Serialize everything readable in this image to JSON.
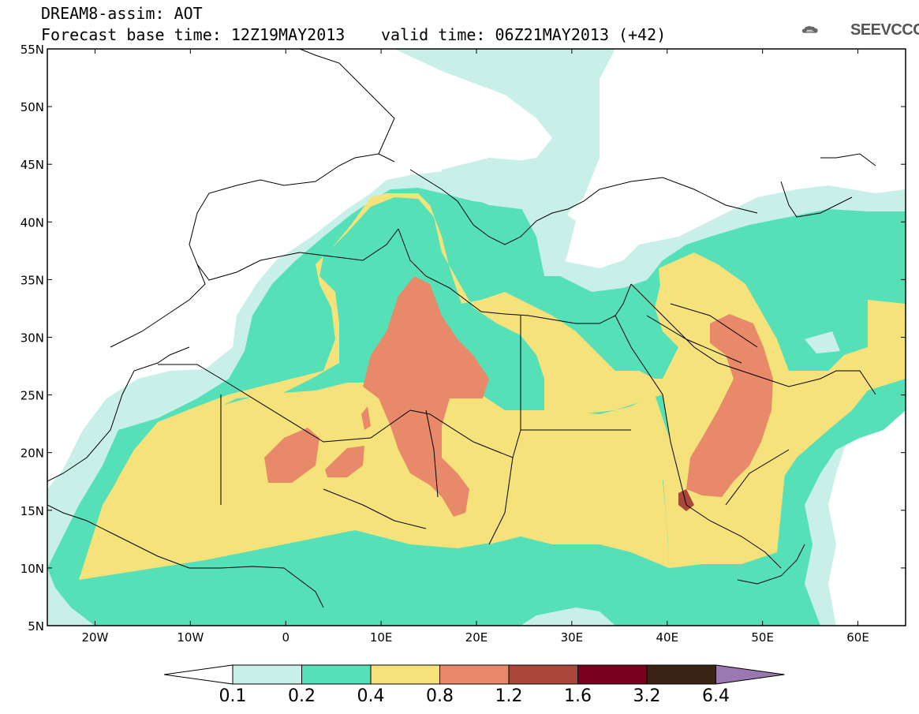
{
  "header": {
    "title": "DREAM8-assim: AOT",
    "base_time": "Forecast base time: 12Z19MAY2013",
    "valid_time": "valid time: 06Z21MAY2013 (+42)",
    "logo_text": "SEEVCCC"
  },
  "map": {
    "lon_ticks": [
      "20W",
      "10W",
      "0",
      "10E",
      "20E",
      "30E",
      "40E",
      "50E",
      "60E"
    ],
    "lat_ticks": [
      "55N",
      "50N",
      "45N",
      "40N",
      "35N",
      "30N",
      "25N",
      "20N",
      "15N",
      "10N",
      "5N"
    ],
    "lon_range": [
      -25,
      65
    ],
    "lat_range": [
      5,
      55
    ]
  },
  "colorbar": {
    "labels": [
      "0.1",
      "0.2",
      "0.4",
      "0.8",
      "1.2",
      "1.6",
      "3.2",
      "6.4"
    ],
    "colors": [
      "#ffffff",
      "#c8f0e8",
      "#56e0b8",
      "#f5e27a",
      "#e8896a",
      "#a9473a",
      "#7a0020",
      "#3a2314",
      "#9b79b0"
    ]
  },
  "legend_colors": {
    "c01": "#c8f0e8",
    "c02": "#56e0b8",
    "c04": "#f5e27a",
    "c08": "#e8896a",
    "c12": "#a9473a"
  }
}
